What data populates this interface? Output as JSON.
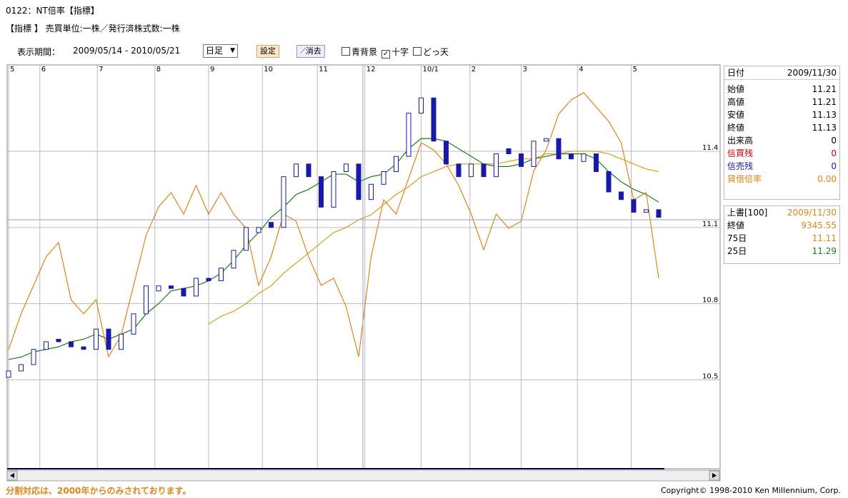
{
  "header": {
    "title": "0122：NT倍率【指標】",
    "subtitle": "【指標 】 売買単位:一株／発行済株式数:一株"
  },
  "toolbar": {
    "period_label": "表示期間：",
    "period": "2009/05/14 - 2010/05/21",
    "interval": "日足",
    "set_button": "設定",
    "erase_button": "消去",
    "options": [
      {
        "label": "青背景",
        "checked": false
      },
      {
        "label": "十字",
        "checked": true
      },
      {
        "label": "どっ天",
        "checked": false
      }
    ]
  },
  "chart_data": {
    "type": "candlestick",
    "categories": [
      null,
      null,
      null,
      null,
      null,
      null,
      null,
      null,
      null,
      null,
      null,
      null,
      null,
      null,
      null,
      null,
      null,
      null,
      null,
      null,
      null,
      null,
      null,
      null,
      null,
      null,
      null,
      null,
      null,
      null,
      null,
      null,
      null,
      null,
      null,
      null,
      null,
      null,
      null,
      null,
      null,
      null,
      null,
      null,
      null,
      null,
      null,
      null,
      null,
      null,
      null,
      null,
      null
    ],
    "xticks": [
      {
        "value": 0,
        "label": "5"
      },
      {
        "value": 2.5,
        "label": "6"
      },
      {
        "value": 7.1,
        "label": "7"
      },
      {
        "value": 11.7,
        "label": "8"
      },
      {
        "value": 16,
        "label": "9"
      },
      {
        "value": 20.3,
        "label": "10"
      },
      {
        "value": 24.7,
        "label": "11"
      },
      {
        "value": 28.5,
        "label": "12"
      },
      {
        "value": 33,
        "label": "10/1"
      },
      {
        "value": 36.9,
        "label": "2"
      },
      {
        "value": 41,
        "label": "3"
      },
      {
        "value": 45.5,
        "label": "4"
      },
      {
        "value": 49.8,
        "label": "5"
      }
    ],
    "ylim": [
      10.15,
      11.74
    ],
    "yticks": [
      10.5,
      10.8,
      11.1,
      11.4
    ],
    "y2lim": [
      8064,
      11568
    ],
    "grid": true,
    "candles": {
      "color": "#1a1aa8",
      "open": [
        10.51,
        10.535,
        10.56,
        10.62,
        10.66,
        10.65,
        10.63,
        10.62,
        10.7,
        10.62,
        10.68,
        10.76,
        10.85,
        10.87,
        10.86,
        10.83,
        10.9,
        10.89,
        10.94,
        11.01,
        11.08,
        11.12,
        11.1,
        11.3,
        11.35,
        11.3,
        11.18,
        11.32,
        11.35,
        11.21,
        11.27,
        11.32,
        11.38,
        11.55,
        11.61,
        11.44,
        11.35,
        11.3,
        11.35,
        11.3,
        11.41,
        11.39,
        11.34,
        11.44,
        11.45,
        11.39,
        11.36,
        11.39,
        11.32,
        11.24,
        11.21,
        11.16,
        11.17
      ],
      "close": [
        10.535,
        10.56,
        10.62,
        10.65,
        10.65,
        10.63,
        10.62,
        10.7,
        10.62,
        10.68,
        10.76,
        10.87,
        10.87,
        10.86,
        10.83,
        10.9,
        10.89,
        10.94,
        11.01,
        11.1,
        11.1,
        11.1,
        11.3,
        11.35,
        11.3,
        11.18,
        11.32,
        11.35,
        11.21,
        11.27,
        11.32,
        11.38,
        11.55,
        11.61,
        11.44,
        11.35,
        11.3,
        11.35,
        11.3,
        11.39,
        11.39,
        11.34,
        11.44,
        11.45,
        11.37,
        11.37,
        11.39,
        11.32,
        11.24,
        11.21,
        11.16,
        11.17,
        11.14
      ]
    },
    "series": [
      {
        "color": "#1e7a1e",
        "values": [
          10.58,
          10.59,
          10.61,
          10.62,
          10.63,
          10.65,
          10.66,
          10.68,
          10.66,
          10.68,
          10.7,
          10.76,
          10.8,
          10.85,
          10.86,
          10.87,
          10.89,
          10.92,
          10.97,
          11.03,
          11.08,
          11.14,
          11.18,
          11.23,
          11.25,
          11.28,
          11.31,
          11.31,
          11.28,
          11.3,
          11.31,
          11.35,
          11.41,
          11.45,
          11.45,
          11.44,
          11.41,
          11.38,
          11.35,
          11.34,
          11.34,
          11.35,
          11.37,
          11.38,
          11.39,
          11.39,
          11.39,
          11.37,
          11.32,
          11.28,
          11.25,
          11.23,
          11.2
        ]
      },
      {
        "color": "#d4a017",
        "values": [
          null,
          null,
          null,
          null,
          null,
          null,
          null,
          null,
          null,
          null,
          null,
          null,
          null,
          null,
          null,
          null,
          10.72,
          10.75,
          10.77,
          10.8,
          10.84,
          10.87,
          10.92,
          10.96,
          11.0,
          11.04,
          11.08,
          11.1,
          11.13,
          11.15,
          11.19,
          11.23,
          11.26,
          11.3,
          11.32,
          11.34,
          11.35,
          11.35,
          11.35,
          11.35,
          11.36,
          11.37,
          11.37,
          11.39,
          11.39,
          11.4,
          11.4,
          11.4,
          11.39,
          11.37,
          11.35,
          11.33,
          11.32
        ]
      },
      {
        "color": "#d9861a",
        "axis": "y2",
        "values": [
          9098,
          9408,
          9655,
          9903,
          10027,
          9531,
          9408,
          9531,
          9036,
          9222,
          9655,
          10089,
          10336,
          10460,
          10274,
          10522,
          10274,
          10460,
          10274,
          10150,
          9655,
          9903,
          10274,
          10212,
          9903,
          9655,
          9717,
          9470,
          9036,
          9903,
          10398,
          10274,
          10584,
          10893,
          10831,
          10708,
          10522,
          10274,
          9965,
          10274,
          10150,
          10212,
          10646,
          10831,
          11141,
          11265,
          11327,
          11203,
          11079,
          10893,
          10398,
          10460,
          9717
        ]
      }
    ]
  },
  "side_panel": {
    "info": [
      {
        "label": "日付",
        "value": "2009/11/30",
        "color": "#000000"
      },
      {
        "label": "始値",
        "value": "11.21",
        "color": "#000000"
      },
      {
        "label": "高値",
        "value": "11.21",
        "color": "#000000"
      },
      {
        "label": "安値",
        "value": "11.13",
        "color": "#000000"
      },
      {
        "label": "終値",
        "value": "11.13",
        "color": "#000000"
      },
      {
        "label": "出来高",
        "value": "0",
        "color": "#000000"
      },
      {
        "label": "信買残",
        "value": "0",
        "color": "#cc0000"
      },
      {
        "label": "信売残",
        "value": "0",
        "color": "#1a1aa8"
      },
      {
        "label": "貸借倍率",
        "value": "0.00",
        "color": "#d9861a"
      }
    ],
    "overlay": [
      {
        "label": "上書[100]",
        "value": "2009/11/30",
        "color": "#d9861a"
      },
      {
        "label": "終値",
        "value": "9345.55",
        "color": "#d9861a"
      },
      {
        "label": "75日",
        "value": "11.11",
        "color": "#d9861a"
      },
      {
        "label": "25日",
        "value": "11.29",
        "color": "#1e7a1e"
      }
    ]
  },
  "footer": {
    "note": "分割対応は、2000年からのみされております。",
    "copyright": "Copyright© 1998-2010 Ken Millennium, Corp."
  }
}
